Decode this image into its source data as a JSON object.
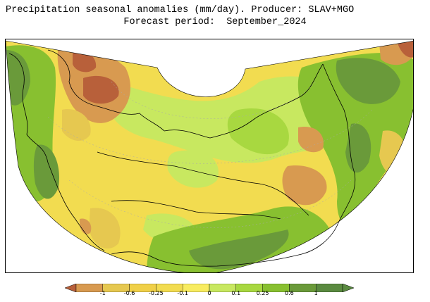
{
  "header": {
    "title_line1": "Precipitation seasonal anomalies (mm/day). Producer: SLAV+MGO",
    "title_line2": "Forecast period:  September_2024"
  },
  "legend": {
    "ticks": [
      "-1",
      "-0.6",
      "-0.25",
      "-0.1",
      "0",
      "0.1",
      "0.25",
      "0.6",
      "1"
    ],
    "colors": [
      "#b8603a",
      "#d89a50",
      "#e6c850",
      "#f2dc50",
      "#f8ec60",
      "#c8e860",
      "#a8d840",
      "#88c030",
      "#6a9a3a",
      "#5a8a40"
    ]
  },
  "map": {
    "colors": {
      "strong_dry": "#b8603a",
      "dry": "#d89a50",
      "light_dry": "#e6c850",
      "near_zero": "#f2dc50",
      "light_wet": "#c8e860",
      "wet": "#a8d840",
      "more_wet": "#88c030",
      "very_wet": "#6a9a3a"
    }
  }
}
